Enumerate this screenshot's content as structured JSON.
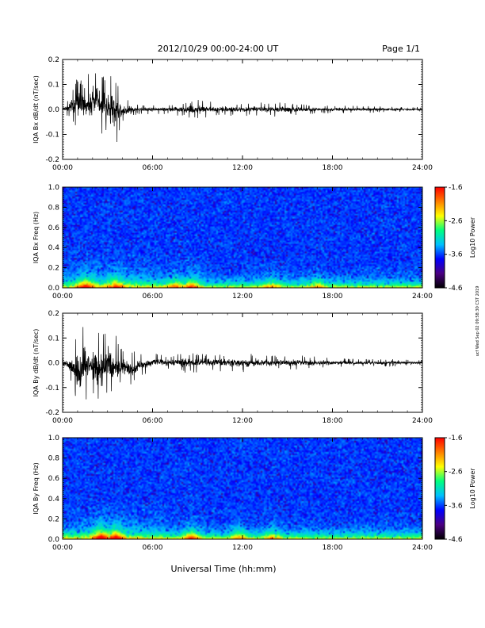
{
  "header": {
    "title": "2012/10/29  00:00-24:00 UT",
    "page": "Page 1/1"
  },
  "sidebar_text": "ucf Wed Sep 02 09:58:30 CST 2019",
  "colors": {
    "trace": "#000000",
    "colormap": [
      "#000000",
      "#4b0082",
      "#0000ff",
      "#00bfff",
      "#00ff7f",
      "#ffff00",
      "#ff7f00",
      "#ff0000"
    ]
  },
  "chart_data": [
    {
      "type": "line",
      "panel": "bx-waveform",
      "ylabel": "IQA Bx dB/dt (nT/sec)",
      "ylim": [
        -0.2,
        0.2
      ],
      "yticks": [
        "0.2",
        "0.1",
        "0.0",
        "-0.1",
        "-0.2"
      ],
      "xlim": [
        0,
        24
      ],
      "xticks": [
        "00:00",
        "06:00",
        "12:00",
        "18:00",
        "24:00"
      ],
      "envelope": {
        "hours": [
          0,
          0.5,
          1,
          1.5,
          2,
          2.5,
          3,
          3.5,
          4,
          5,
          6,
          7,
          8,
          9,
          10,
          11,
          12,
          13,
          14,
          15,
          16,
          18,
          20,
          22,
          24
        ],
        "upper": [
          0.01,
          0.06,
          0.15,
          0.1,
          0.2,
          0.15,
          0.13,
          0.16,
          0.05,
          0.02,
          0.02,
          0.02,
          0.03,
          0.04,
          0.03,
          0.03,
          0.025,
          0.03,
          0.03,
          0.025,
          0.02,
          0.015,
          0.015,
          0.01,
          0.01
        ],
        "lower": [
          -0.01,
          -0.04,
          -0.1,
          -0.07,
          -0.12,
          -0.1,
          -0.11,
          -0.18,
          -0.06,
          -0.02,
          -0.02,
          -0.02,
          -0.03,
          -0.04,
          -0.03,
          -0.03,
          -0.025,
          -0.03,
          -0.03,
          -0.025,
          -0.02,
          -0.015,
          -0.015,
          -0.01,
          -0.01
        ]
      }
    },
    {
      "type": "heatmap",
      "panel": "bx-spectrogram",
      "ylabel": "IQA Bx Freq (Hz)",
      "ylim": [
        0,
        1.0
      ],
      "yticks": [
        "1.0",
        "0.8",
        "0.6",
        "0.4",
        "0.2",
        "0.0"
      ],
      "xlim": [
        0,
        24
      ],
      "xticks": [
        "00:00",
        "06:00",
        "12:00",
        "18:00",
        "24:00"
      ],
      "colorbar": {
        "label": "Log10 Power",
        "range": [
          -4.6,
          -1.6
        ],
        "ticks": [
          "-1.6",
          "-2.6",
          "-3.6",
          "-4.6"
        ]
      },
      "enhanced_hours": [
        {
          "hour": 1.5,
          "level": 0.7
        },
        {
          "hour": 3.5,
          "level": 0.55
        },
        {
          "hour": 7.5,
          "level": 0.5
        },
        {
          "hour": 8.6,
          "level": 0.7
        },
        {
          "hour": 14,
          "level": 0.5
        },
        {
          "hour": 17,
          "level": 0.45
        }
      ]
    },
    {
      "type": "line",
      "panel": "by-waveform",
      "ylabel": "IQA By dB/dt (nT/sec)",
      "ylim": [
        -0.2,
        0.2
      ],
      "yticks": [
        "0.2",
        "0.1",
        "0.0",
        "-0.1",
        "-0.2"
      ],
      "xlim": [
        0,
        24
      ],
      "xticks": [
        "00:00",
        "06:00",
        "12:00",
        "18:00",
        "24:00"
      ],
      "envelope": {
        "hours": [
          0,
          0.5,
          1,
          1.5,
          2,
          2.5,
          3,
          3.5,
          4,
          4.5,
          5,
          5.5,
          6,
          7,
          8,
          9,
          10,
          11,
          12,
          13,
          14,
          15,
          16,
          18,
          20,
          22,
          24
        ],
        "upper": [
          0.02,
          0.04,
          0.12,
          0.16,
          0.13,
          0.14,
          0.14,
          0.12,
          0.05,
          0.06,
          0.05,
          0.035,
          0.04,
          0.03,
          0.04,
          0.04,
          0.035,
          0.035,
          0.04,
          0.035,
          0.03,
          0.03,
          0.03,
          0.02,
          0.015,
          0.015,
          0.01
        ],
        "lower": [
          -0.02,
          -0.06,
          -0.2,
          -0.17,
          -0.16,
          -0.2,
          -0.15,
          -0.16,
          -0.08,
          -0.12,
          -0.08,
          -0.05,
          -0.03,
          -0.03,
          -0.04,
          -0.04,
          -0.035,
          -0.035,
          -0.04,
          -0.035,
          -0.03,
          -0.03,
          -0.03,
          -0.02,
          -0.015,
          -0.015,
          -0.01
        ]
      }
    },
    {
      "type": "heatmap",
      "panel": "by-spectrogram",
      "ylabel": "IQA By Freq (Hz)",
      "ylim": [
        0,
        1.0
      ],
      "yticks": [
        "1.0",
        "0.8",
        "0.6",
        "0.4",
        "0.2",
        "0.0"
      ],
      "xlim": [
        0,
        24
      ],
      "xticks": [
        "00:00",
        "06:00",
        "12:00",
        "18:00",
        "24:00"
      ],
      "xlabel": "Universal Time (hh:mm)",
      "colorbar": {
        "label": "Log10 Power",
        "range": [
          -4.6,
          -1.6
        ],
        "ticks": [
          "-1.6",
          "-2.6",
          "-3.6",
          "-4.6"
        ]
      },
      "enhanced_hours": [
        {
          "hour": 2.5,
          "level": 0.9
        },
        {
          "hour": 3.5,
          "level": 0.8
        },
        {
          "hour": 8.6,
          "level": 0.7
        },
        {
          "hour": 11.8,
          "level": 0.5
        },
        {
          "hour": 14,
          "level": 0.45
        }
      ]
    }
  ]
}
